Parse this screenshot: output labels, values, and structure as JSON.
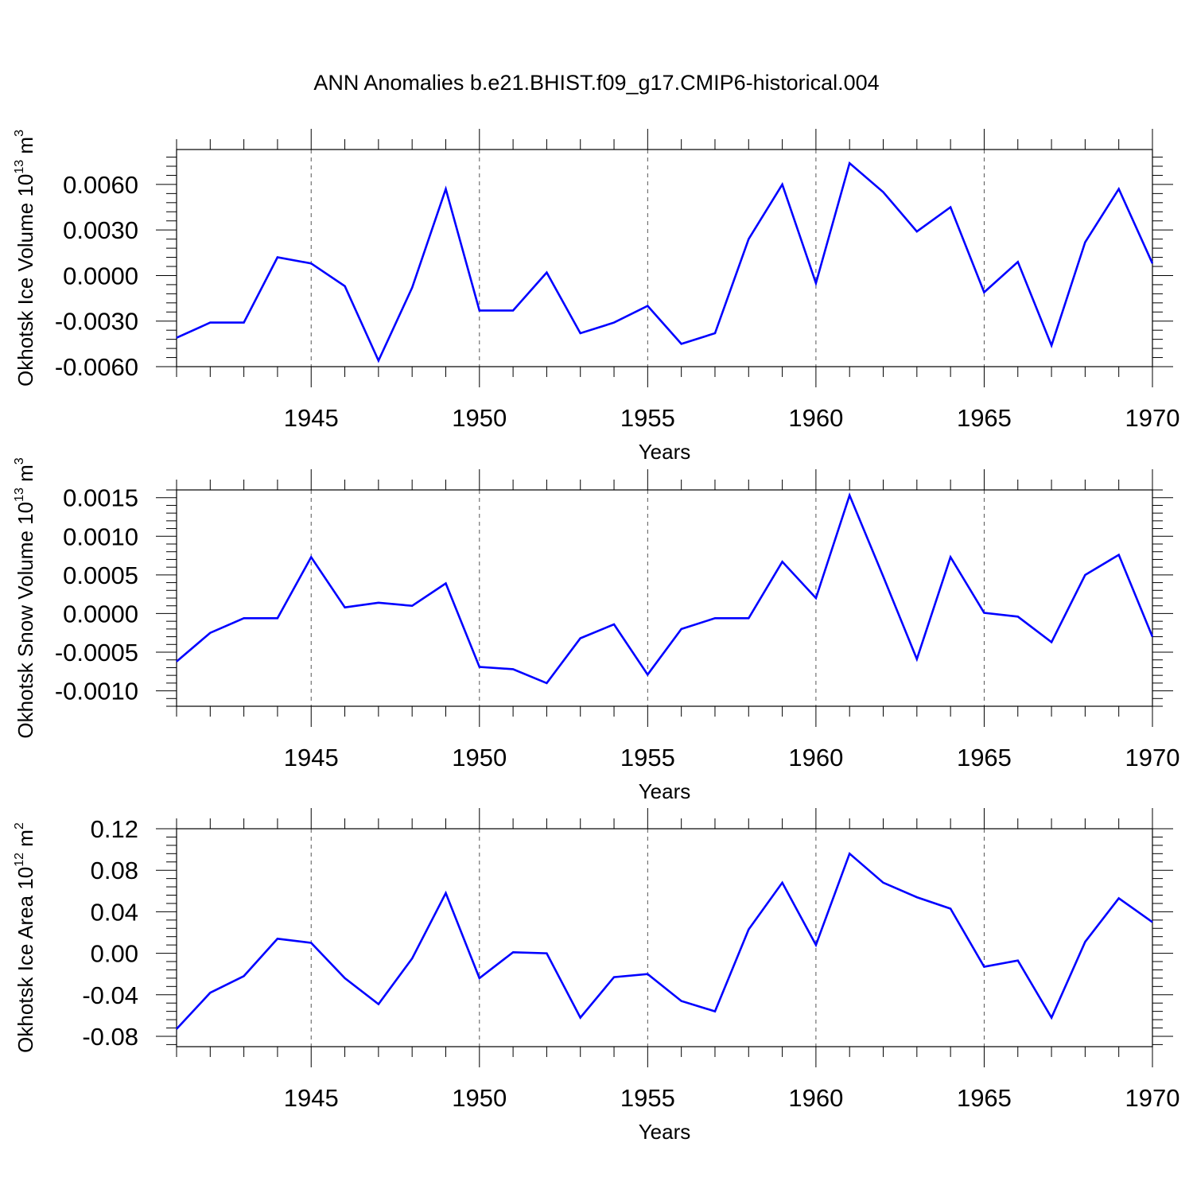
{
  "title": "ANN Anomalies b.e21.BHIST.f09_g17.CMIP6-historical.004",
  "line_color": "#0000ff",
  "chart_data": [
    {
      "type": "line",
      "title": "ANN Anomalies b.e21.BHIST.f09_g17.CMIP6-historical.004",
      "ylabel": "Okhotsk Ice Volume",
      "ylabel_unit_base": "10",
      "ylabel_unit_exp": "13",
      "ylabel_unit_symbol": "m",
      "ylabel_unit_sym_exp": "3",
      "xlabel": "Years",
      "xlim": [
        1941,
        1970
      ],
      "ylim": [
        -0.006,
        0.0083
      ],
      "x_major_ticks": [
        1945,
        1950,
        1955,
        1960,
        1965,
        1970
      ],
      "x_tick_labels": [
        "1945",
        "1950",
        "1955",
        "1960",
        "1965",
        "1970"
      ],
      "y_major_ticks": [
        -0.006,
        -0.003,
        0.0,
        0.003,
        0.006
      ],
      "y_tick_labels": [
        "-0.0060",
        "-0.0030",
        "0.0000",
        "0.0030",
        "0.0060"
      ],
      "y_minor_step": 0.0006,
      "x": [
        1941,
        1942,
        1943,
        1944,
        1945,
        1946,
        1947,
        1948,
        1949,
        1950,
        1951,
        1952,
        1953,
        1954,
        1955,
        1956,
        1957,
        1958,
        1959,
        1960,
        1961,
        1962,
        1963,
        1964,
        1965,
        1966,
        1967,
        1968,
        1969,
        1970
      ],
      "values": [
        -0.0041,
        -0.0031,
        -0.0031,
        0.0012,
        0.0008,
        -0.0007,
        -0.0056,
        -0.0008,
        0.0057,
        -0.0023,
        -0.0023,
        0.0002,
        -0.0038,
        -0.0031,
        -0.002,
        -0.0045,
        -0.0038,
        0.0024,
        0.006,
        -0.0005,
        0.0074,
        0.0055,
        0.0029,
        0.0045,
        -0.0011,
        0.0009,
        -0.0046,
        0.0022,
        0.0057,
        0.0008
      ]
    },
    {
      "type": "line",
      "ylabel": "Okhotsk Snow Volume",
      "ylabel_unit_base": "10",
      "ylabel_unit_exp": "13",
      "ylabel_unit_symbol": "m",
      "ylabel_unit_sym_exp": "3",
      "xlabel": "Years",
      "xlim": [
        1941,
        1970
      ],
      "ylim": [
        -0.0012,
        0.0016
      ],
      "x_major_ticks": [
        1945,
        1950,
        1955,
        1960,
        1965,
        1970
      ],
      "x_tick_labels": [
        "1945",
        "1950",
        "1955",
        "1960",
        "1965",
        "1970"
      ],
      "y_major_ticks": [
        -0.001,
        -0.0005,
        0.0,
        0.0005,
        0.001,
        0.0015
      ],
      "y_tick_labels": [
        "-0.0010",
        "-0.0005",
        "0.0000",
        "0.0005",
        "0.0010",
        "0.0015"
      ],
      "y_minor_step": 0.0001,
      "x": [
        1941,
        1942,
        1943,
        1944,
        1945,
        1946,
        1947,
        1948,
        1949,
        1950,
        1951,
        1952,
        1953,
        1954,
        1955,
        1956,
        1957,
        1958,
        1959,
        1960,
        1961,
        1962,
        1963,
        1964,
        1965,
        1966,
        1967,
        1968,
        1969,
        1970
      ],
      "values": [
        -0.00062,
        -0.00025,
        -6e-05,
        -6e-05,
        0.00073,
        8e-05,
        0.00014,
        0.0001,
        0.00039,
        -0.00069,
        -0.00072,
        -0.0009,
        -0.00032,
        -0.00014,
        -0.00079,
        -0.0002,
        -6e-05,
        -6e-05,
        0.00067,
        0.0002,
        0.00153,
        0.00048,
        -0.00059,
        0.00073,
        1e-05,
        -4e-05,
        -0.00037,
        0.0005,
        0.00076,
        -0.0003
      ]
    },
    {
      "type": "line",
      "ylabel": "Okhotsk Ice Area",
      "ylabel_unit_base": "10",
      "ylabel_unit_exp": "12",
      "ylabel_unit_symbol": "m",
      "ylabel_unit_sym_exp": "2",
      "xlabel": "Years",
      "xlim": [
        1941,
        1970
      ],
      "ylim": [
        -0.09,
        0.12
      ],
      "x_major_ticks": [
        1945,
        1950,
        1955,
        1960,
        1965,
        1970
      ],
      "x_tick_labels": [
        "1945",
        "1950",
        "1955",
        "1960",
        "1965",
        "1970"
      ],
      "y_major_ticks": [
        -0.08,
        -0.04,
        0.0,
        0.04,
        0.08,
        0.12
      ],
      "y_tick_labels": [
        "-0.08",
        "-0.04",
        "0.00",
        "0.04",
        "0.08",
        "0.12"
      ],
      "y_minor_step": 0.008,
      "x": [
        1941,
        1942,
        1943,
        1944,
        1945,
        1946,
        1947,
        1948,
        1949,
        1950,
        1951,
        1952,
        1953,
        1954,
        1955,
        1956,
        1957,
        1958,
        1959,
        1960,
        1961,
        1962,
        1963,
        1964,
        1965,
        1966,
        1967,
        1968,
        1969,
        1970
      ],
      "values": [
        -0.073,
        -0.038,
        -0.022,
        0.014,
        0.01,
        -0.024,
        -0.049,
        -0.005,
        0.058,
        -0.024,
        0.001,
        0.0,
        -0.062,
        -0.023,
        -0.02,
        -0.046,
        -0.056,
        0.023,
        0.068,
        0.008,
        0.096,
        0.068,
        0.054,
        0.043,
        -0.013,
        -0.007,
        -0.062,
        0.011,
        0.053,
        0.03
      ]
    }
  ]
}
